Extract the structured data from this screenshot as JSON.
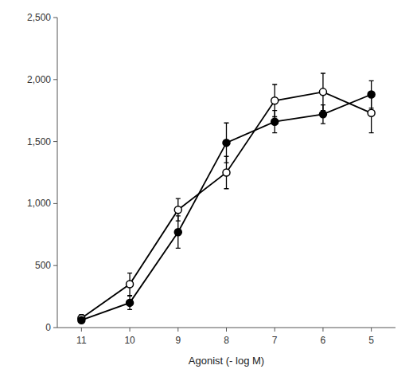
{
  "chart_data": {
    "type": "line",
    "xlabel": "Agonist (- log M)",
    "x": [
      11,
      10,
      9,
      8,
      7,
      6,
      5
    ],
    "series": [
      {
        "color": "#000000",
        "marker": "open-circle",
        "line_style": "solid",
        "values": [
          75,
          350,
          950,
          1250,
          1830,
          1900,
          1730
        ],
        "errors": [
          30,
          90,
          90,
          130,
          130,
          150,
          160
        ]
      },
      {
        "color": "#000000",
        "marker": "filled-circle",
        "line_style": "solid",
        "values": [
          60,
          200,
          770,
          1490,
          1660,
          1720,
          1880
        ],
        "errors": [
          20,
          55,
          130,
          160,
          90,
          75,
          110
        ]
      }
    ],
    "xlim": [
      11.5,
      4.5
    ],
    "ylim": [
      0,
      2500
    ],
    "xticks": [
      11,
      10,
      9,
      8,
      7,
      6,
      5
    ],
    "yticks": [
      0,
      500,
      {
        "value": 1000,
        "label": "1,000"
      },
      {
        "value": 1500,
        "label": "1,500"
      },
      {
        "value": 2000,
        "label": "2,000"
      },
      {
        "value": 2500,
        "label": "2,500"
      }
    ],
    "grid": false
  }
}
